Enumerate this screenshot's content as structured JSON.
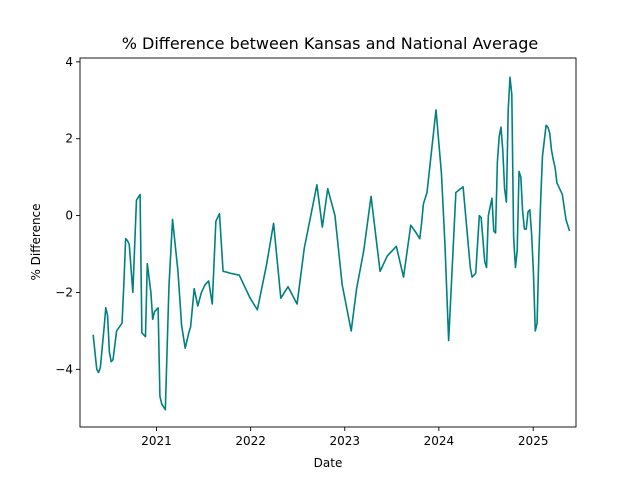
{
  "chart_data": {
    "type": "line",
    "title": "% Difference between Kansas and National Average",
    "xlabel": "Date",
    "ylabel": "% Difference",
    "xlim": [
      "2020-03-10",
      "2025-06-16"
    ],
    "ylim": [
      -5.5,
      4.1
    ],
    "x_ticks": [
      "2021-01-01",
      "2022-01-01",
      "2023-01-01",
      "2024-01-01",
      "2025-01-01"
    ],
    "x_tick_labels": [
      "2021",
      "2022",
      "2023",
      "2024",
      "2025"
    ],
    "y_ticks": [
      -4,
      -2,
      0,
      2,
      4
    ],
    "y_tick_labels": [
      "−4",
      "−2",
      "0",
      "2",
      "4"
    ],
    "grid": false,
    "series_color": "#008080",
    "series": [
      {
        "x": [
          "2020-04-30",
          "2020-05-14",
          "2020-05-21",
          "2020-05-28",
          "2020-06-11",
          "2020-06-18",
          "2020-06-25",
          "2020-07-02",
          "2020-07-09",
          "2020-07-16",
          "2020-07-30",
          "2020-08-20",
          "2020-08-27",
          "2020-09-03",
          "2020-09-10",
          "2020-09-17",
          "2020-10-01",
          "2020-10-08",
          "2020-10-15",
          "2020-10-29",
          "2020-11-05",
          "2020-11-12",
          "2020-11-19",
          "2020-11-26",
          "2020-12-10",
          "2020-12-17",
          "2020-12-24",
          "2021-01-07",
          "2021-01-14",
          "2021-01-21",
          "2021-02-04",
          "2021-02-18",
          "2021-03-04",
          "2021-03-25",
          "2021-04-08",
          "2021-04-22",
          "2021-05-06",
          "2021-05-13",
          "2021-05-27",
          "2021-06-10",
          "2021-06-24",
          "2021-07-08",
          "2021-07-22",
          "2021-08-05",
          "2021-08-19",
          "2021-09-02",
          "2021-09-16",
          "2021-09-30",
          "2021-10-14",
          "2021-11-18",
          "2021-12-30",
          "2022-01-27",
          "2022-03-03",
          "2022-03-31",
          "2022-04-28",
          "2022-05-26",
          "2022-06-30",
          "2022-07-28",
          "2022-09-15",
          "2022-10-06",
          "2022-10-27",
          "2022-11-24",
          "2022-12-22",
          "2023-01-26",
          "2023-02-16",
          "2023-03-16",
          "2023-04-13",
          "2023-05-18",
          "2023-06-15",
          "2023-07-20",
          "2023-08-17",
          "2023-09-14",
          "2023-10-05",
          "2023-10-19",
          "2023-10-26",
          "2023-11-02",
          "2023-11-16",
          "2023-12-21",
          "2024-01-11",
          "2024-01-25",
          "2024-02-08",
          "2024-03-07",
          "2024-04-04",
          "2024-05-02",
          "2024-05-09",
          "2024-05-23",
          "2024-06-06",
          "2024-06-13",
          "2024-06-27",
          "2024-07-04",
          "2024-07-11",
          "2024-07-25",
          "2024-08-01",
          "2024-08-08",
          "2024-08-15",
          "2024-08-22",
          "2024-08-29",
          "2024-09-05",
          "2024-09-12",
          "2024-09-19",
          "2024-09-26",
          "2024-10-03",
          "2024-10-10",
          "2024-10-17",
          "2024-10-24",
          "2024-10-31",
          "2024-11-07",
          "2024-11-14",
          "2024-11-21",
          "2024-11-28",
          "2024-12-05",
          "2024-12-12",
          "2024-12-19",
          "2024-12-26",
          "2025-01-02",
          "2025-01-09",
          "2025-01-16",
          "2025-01-23",
          "2025-01-30",
          "2025-02-06",
          "2025-02-13",
          "2025-02-20",
          "2025-02-27",
          "2025-03-06",
          "2025-03-13",
          "2025-03-20",
          "2025-03-27",
          "2025-04-03",
          "2025-04-24",
          "2025-05-08",
          "2025-05-22"
        ],
        "y": [
          -3.1,
          -4.0,
          -4.08,
          -3.95,
          -2.95,
          -2.4,
          -2.6,
          -3.55,
          -3.8,
          -3.75,
          -3.0,
          -2.8,
          -1.8,
          -0.6,
          -0.65,
          -0.75,
          -2.0,
          -0.8,
          0.4,
          0.55,
          -3.05,
          -3.1,
          -3.15,
          -1.25,
          -2.0,
          -2.7,
          -2.5,
          -2.4,
          -4.7,
          -4.9,
          -5.05,
          -1.85,
          -0.1,
          -1.45,
          -2.85,
          -3.45,
          -3.05,
          -2.9,
          -1.9,
          -2.35,
          -2.0,
          -1.8,
          -1.7,
          -2.3,
          -0.15,
          0.05,
          -1.45,
          -1.47,
          -1.5,
          -1.55,
          -2.15,
          -2.45,
          -1.3,
          -0.2,
          -2.15,
          -1.85,
          -2.3,
          -0.85,
          0.8,
          -0.3,
          0.7,
          0.0,
          -1.8,
          -3.0,
          -1.9,
          -0.9,
          0.5,
          -1.45,
          -1.05,
          -0.8,
          -1.6,
          -0.25,
          -0.45,
          -0.6,
          -0.2,
          0.3,
          0.6,
          2.75,
          1.1,
          -0.8,
          -3.25,
          0.6,
          0.75,
          -1.35,
          -1.6,
          -1.5,
          0.0,
          -0.05,
          -1.2,
          -1.35,
          0.0,
          0.45,
          -0.4,
          -0.45,
          1.4,
          2.05,
          2.3,
          1.7,
          0.7,
          0.35,
          2.75,
          3.6,
          3.15,
          -0.55,
          -1.35,
          -0.9,
          1.15,
          1.0,
          0.1,
          -0.35,
          -0.35,
          0.1,
          0.15,
          -0.5,
          -1.5,
          -3.0,
          -2.8,
          -1.0,
          0.4,
          1.55,
          1.95,
          2.35,
          2.3,
          2.15,
          1.7,
          1.45,
          1.25,
          0.85,
          0.55,
          -0.1,
          -0.4
        ]
      }
    ]
  }
}
